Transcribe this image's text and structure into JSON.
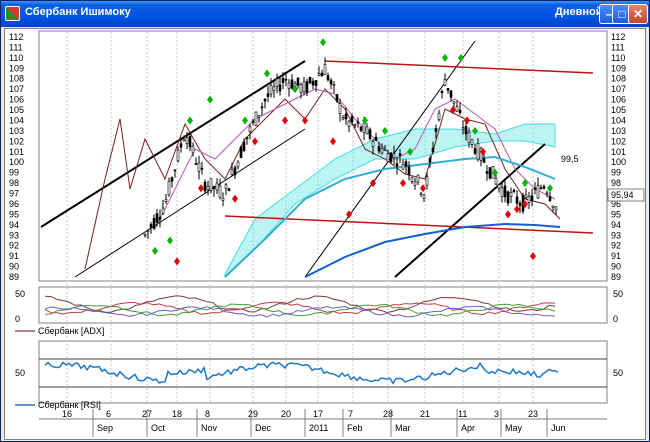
{
  "window": {
    "title": "Сбербанк Ишимоку",
    "period": "Дневной",
    "min_glyph": "–",
    "max_glyph": "□",
    "close_glyph": "✕"
  },
  "panels": {
    "price": {
      "y_ticks": [
        "112",
        "111",
        "110",
        "109",
        "108",
        "107",
        "106",
        "105",
        "104",
        "103",
        "102",
        "101",
        "100",
        "99",
        "98",
        "97",
        "96",
        "95",
        "94",
        "93",
        "92",
        "91",
        "90",
        "89"
      ],
      "label_last": "95,94",
      "label_level": "99,5"
    },
    "adx": {
      "y_ticks": [
        "50",
        "0"
      ],
      "legend": "Сбербанк [ADX]"
    },
    "rsi": {
      "y_ticks": [
        "50"
      ],
      "legend": "Сбербанк [RSI]"
    }
  },
  "time_axis": {
    "days": [
      "16",
      "6",
      "27",
      "18",
      "8",
      "29",
      "20",
      "17",
      "7",
      "28",
      "21",
      "11",
      "3",
      "23"
    ],
    "months": [
      "Sep",
      "Oct",
      "Nov",
      "Dec",
      "2011",
      "Feb",
      "Mar",
      "Apr",
      "May",
      "Jun"
    ]
  },
  "colors": {
    "candle_up": "#000000",
    "marker_up": "#00b400",
    "marker_down": "#e00000",
    "kijun": "#7a1f1f",
    "tenkan": "#b25ab2",
    "kumo": "#40e0e0",
    "sma_long": "#1060d0",
    "resistance": "#c01010",
    "adx_line": "#7a3a3a",
    "rsi_line": "#1e78c8"
  }
}
